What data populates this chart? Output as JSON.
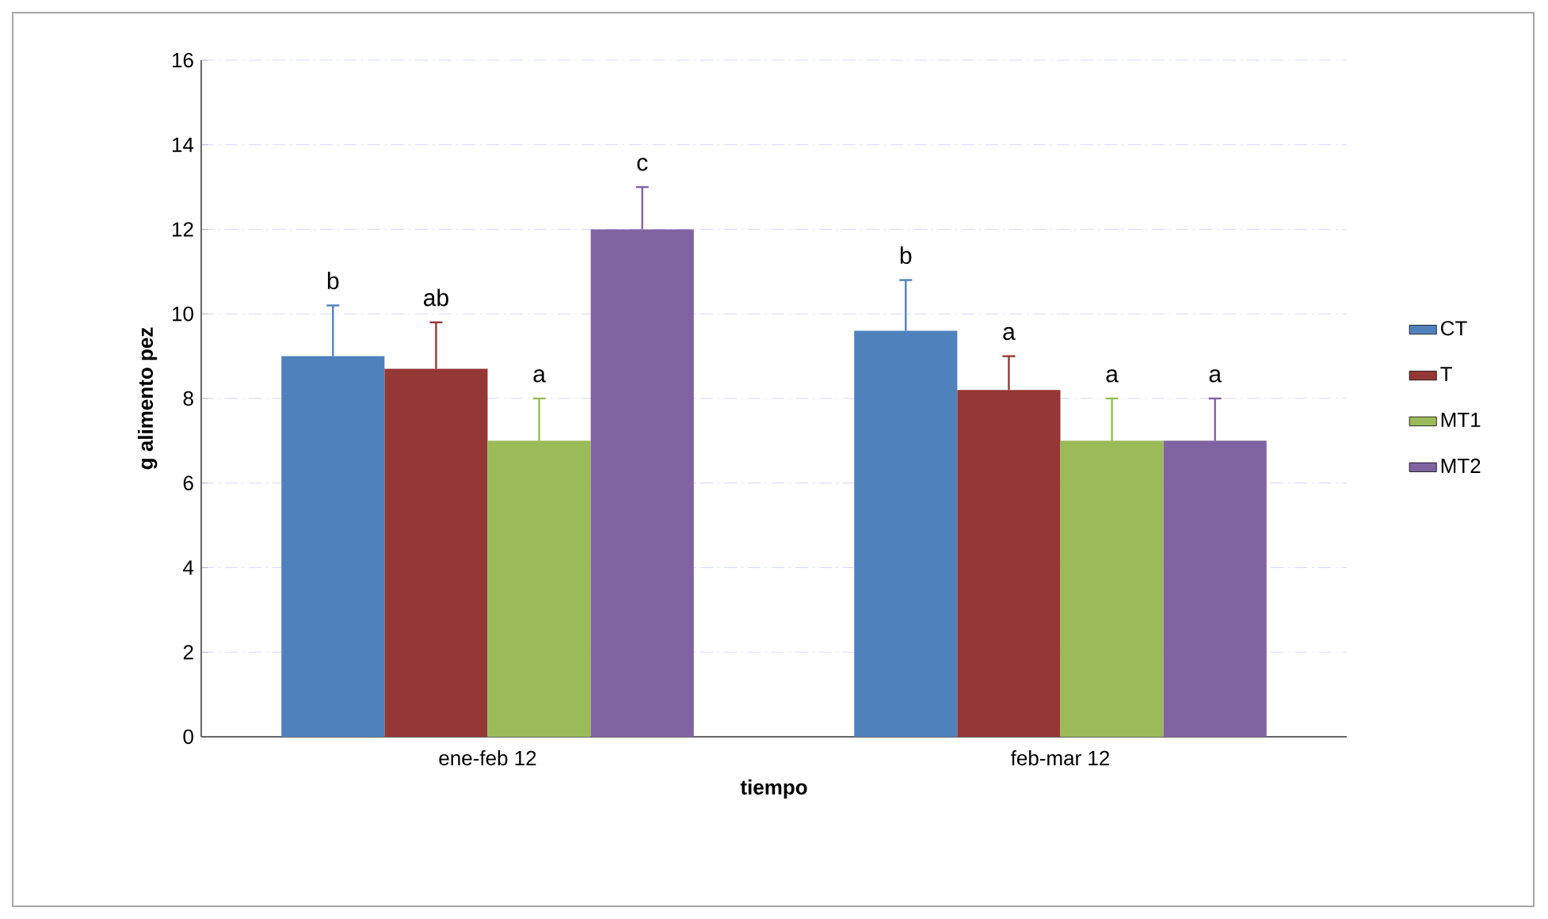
{
  "chart_data": {
    "type": "bar",
    "xlabel": "tiempo",
    "ylabel": "g alimento pez",
    "categories": [
      "ene-feb 12",
      "feb-mar 12"
    ],
    "series": [
      {
        "name": "CT",
        "color": "#4f81bd",
        "values": [
          9.0,
          9.6
        ],
        "errors": [
          1.2,
          1.2
        ],
        "value_labels": [
          "b",
          "b"
        ]
      },
      {
        "name": "T",
        "color": "#953735",
        "values": [
          8.7,
          8.2
        ],
        "errors": [
          1.1,
          0.8
        ],
        "value_labels": [
          "ab",
          "a"
        ]
      },
      {
        "name": "MT1",
        "color": "#9bbb59",
        "values": [
          7.0,
          7.0
        ],
        "errors": [
          1.0,
          1.0
        ],
        "value_labels": [
          "a",
          "a"
        ]
      },
      {
        "name": "MT2",
        "color": "#8064a2",
        "values": [
          12.0,
          7.0
        ],
        "errors": [
          1.0,
          1.0
        ],
        "value_labels": [
          "c",
          "a"
        ]
      }
    ],
    "ylim": [
      0,
      16
    ],
    "yticks": [
      0,
      2,
      4,
      6,
      8,
      10,
      12,
      14,
      16
    ],
    "grid": "y",
    "legend": "right"
  }
}
